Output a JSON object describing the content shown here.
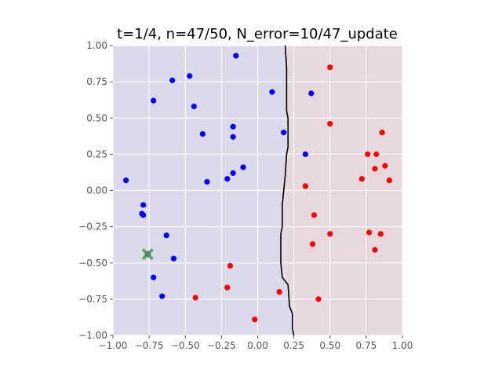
{
  "chart_data": {
    "type": "scatter",
    "title": "t=1/4, n=47/50, N_error=10/47_update",
    "xlabel": "",
    "ylabel": "",
    "xlim": [
      -1.0,
      1.0
    ],
    "ylim": [
      -1.0,
      1.0
    ],
    "grid": true,
    "x_ticks": [
      "−1.00",
      "−0.75",
      "−0.50",
      "−0.25",
      "0.00",
      "0.25",
      "0.50",
      "0.75",
      "1.00"
    ],
    "y_ticks": [
      "1.00",
      "0.75",
      "0.50",
      "0.25",
      "0.00",
      "−0.25",
      "−0.50",
      "−0.75",
      "−1.00"
    ],
    "x_tick_values": [
      -1.0,
      -0.75,
      -0.5,
      -0.25,
      0.0,
      0.25,
      0.5,
      0.75,
      1.0
    ],
    "y_tick_values": [
      1.0,
      0.75,
      0.5,
      0.25,
      0.0,
      -0.25,
      -0.5,
      -0.75,
      -1.0
    ],
    "regions": [
      {
        "side": "left",
        "color": "#dadaea"
      },
      {
        "side": "right",
        "color": "#e6d8dc"
      }
    ],
    "boundary": {
      "color": "#000000",
      "points": [
        [
          0.19,
          1.0
        ],
        [
          0.2,
          0.85
        ],
        [
          0.2,
          0.55
        ],
        [
          0.21,
          0.5
        ],
        [
          0.21,
          0.3
        ],
        [
          0.2,
          0.25
        ],
        [
          0.19,
          0.1
        ],
        [
          0.18,
          0.0
        ],
        [
          0.17,
          -0.1
        ],
        [
          0.17,
          -0.25
        ],
        [
          0.16,
          -0.3
        ],
        [
          0.16,
          -0.5
        ],
        [
          0.17,
          -0.6
        ],
        [
          0.21,
          -0.65
        ],
        [
          0.22,
          -0.8
        ],
        [
          0.24,
          -0.85
        ],
        [
          0.24,
          -0.95
        ],
        [
          0.25,
          -1.0
        ]
      ]
    },
    "series": [
      {
        "color": "#0000ff",
        "points": [
          [
            -0.15,
            0.93
          ],
          [
            -0.47,
            0.79
          ],
          [
            -0.59,
            0.76
          ],
          [
            0.1,
            0.68
          ],
          [
            0.37,
            0.67
          ],
          [
            -0.72,
            0.62
          ],
          [
            -0.44,
            0.58
          ],
          [
            -0.17,
            0.44
          ],
          [
            -0.38,
            0.39
          ],
          [
            -0.17,
            0.37
          ],
          [
            0.18,
            0.4
          ],
          [
            0.33,
            0.25
          ],
          [
            -0.1,
            0.16
          ],
          [
            -0.17,
            0.12
          ],
          [
            -0.21,
            0.08
          ],
          [
            -0.35,
            0.06
          ],
          [
            -0.91,
            0.07
          ],
          [
            -0.79,
            -0.1
          ],
          [
            -0.8,
            -0.16
          ],
          [
            -0.79,
            -0.17
          ],
          [
            -0.63,
            -0.31
          ],
          [
            -0.76,
            -0.44
          ],
          [
            -0.58,
            -0.47
          ],
          [
            -0.72,
            -0.6
          ],
          [
            -0.66,
            -0.73
          ]
        ]
      },
      {
        "color": "#ff0000",
        "points": [
          [
            0.5,
            0.85
          ],
          [
            0.5,
            0.46
          ],
          [
            0.86,
            0.4
          ],
          [
            0.76,
            0.25
          ],
          [
            0.82,
            0.25
          ],
          [
            0.88,
            0.17
          ],
          [
            0.81,
            0.15
          ],
          [
            0.72,
            0.08
          ],
          [
            0.91,
            0.07
          ],
          [
            0.33,
            0.03
          ],
          [
            0.39,
            -0.17
          ],
          [
            0.5,
            -0.3
          ],
          [
            0.77,
            -0.29
          ],
          [
            0.85,
            -0.3
          ],
          [
            0.38,
            -0.37
          ],
          [
            0.81,
            -0.41
          ],
          [
            -0.19,
            -0.52
          ],
          [
            -0.21,
            -0.67
          ],
          [
            -0.43,
            -0.74
          ],
          [
            0.15,
            -0.7
          ],
          [
            0.42,
            -0.75
          ],
          [
            -0.02,
            -0.89
          ]
        ]
      }
    ],
    "highlight": {
      "x": -0.76,
      "y": -0.44,
      "marker": "X",
      "color": "#4f9a4f"
    }
  }
}
